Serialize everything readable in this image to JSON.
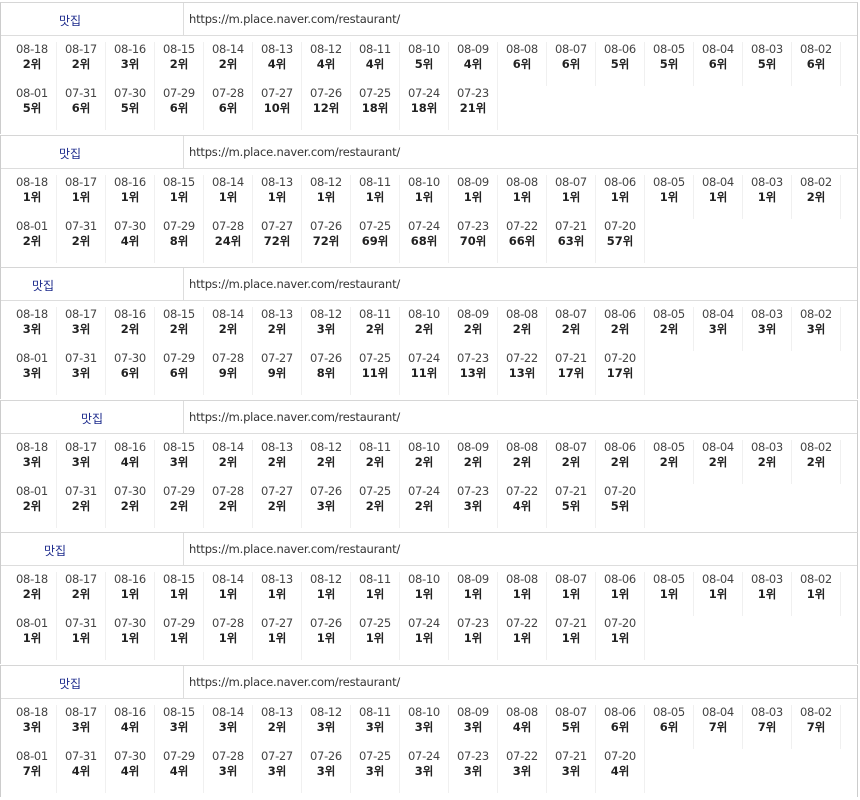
{
  "blocks": [
    {
      "keyword": "맛집",
      "url": "https://m.place.naver.com/restaurant/",
      "dates": [
        "08-18",
        "08-17",
        "08-16",
        "08-15",
        "08-14",
        "08-13",
        "08-12",
        "08-11",
        "08-10",
        "08-09",
        "08-08",
        "08-07",
        "08-06",
        "08-05",
        "08-04",
        "08-03",
        "08-02",
        "08-01",
        "07-31",
        "07-30",
        "07-29",
        "07-28",
        "07-27",
        "07-26",
        "07-25",
        "07-24",
        "07-23"
      ],
      "ranks": [
        "2위",
        "2위",
        "3위",
        "2위",
        "2위",
        "4위",
        "4위",
        "4위",
        "5위",
        "4위",
        "6위",
        "6위",
        "5위",
        "5위",
        "6위",
        "5위",
        "6위",
        "5위",
        "6위",
        "5위",
        "6위",
        "6위",
        "10위",
        "12위",
        "18위",
        "18위",
        "21위"
      ]
    },
    {
      "keyword": "맛집",
      "url": "https://m.place.naver.com/restaurant/",
      "dates": [
        "08-18",
        "08-17",
        "08-16",
        "08-15",
        "08-14",
        "08-13",
        "08-12",
        "08-11",
        "08-10",
        "08-09",
        "08-08",
        "08-07",
        "08-06",
        "08-05",
        "08-04",
        "08-03",
        "08-02",
        "08-01",
        "07-31",
        "07-30",
        "07-29",
        "07-28",
        "07-27",
        "07-26",
        "07-25",
        "07-24",
        "07-23",
        "07-22",
        "07-21",
        "07-20"
      ],
      "ranks": [
        "1위",
        "1위",
        "1위",
        "1위",
        "1위",
        "1위",
        "1위",
        "1위",
        "1위",
        "1위",
        "1위",
        "1위",
        "1위",
        "1위",
        "1위",
        "1위",
        "2위",
        "2위",
        "2위",
        "4위",
        "8위",
        "24위",
        "72위",
        "72위",
        "69위",
        "68위",
        "70위",
        "66위",
        "63위",
        "57위"
      ]
    },
    {
      "keyword": "맛집",
      "url": "https://m.place.naver.com/restaurant/",
      "dates": [
        "08-18",
        "08-17",
        "08-16",
        "08-15",
        "08-14",
        "08-13",
        "08-12",
        "08-11",
        "08-10",
        "08-09",
        "08-08",
        "08-07",
        "08-06",
        "08-05",
        "08-04",
        "08-03",
        "08-02",
        "08-01",
        "07-31",
        "07-30",
        "07-29",
        "07-28",
        "07-27",
        "07-26",
        "07-25",
        "07-24",
        "07-23",
        "07-22",
        "07-21",
        "07-20"
      ],
      "ranks": [
        "3위",
        "3위",
        "2위",
        "2위",
        "2위",
        "2위",
        "3위",
        "2위",
        "2위",
        "2위",
        "2위",
        "2위",
        "2위",
        "2위",
        "3위",
        "3위",
        "3위",
        "3위",
        "3위",
        "6위",
        "6위",
        "9위",
        "9위",
        "8위",
        "11위",
        "11위",
        "13위",
        "13위",
        "17위",
        "17위"
      ]
    },
    {
      "keyword": "맛집",
      "url": "https://m.place.naver.com/restaurant/",
      "dates": [
        "08-18",
        "08-17",
        "08-16",
        "08-15",
        "08-14",
        "08-13",
        "08-12",
        "08-11",
        "08-10",
        "08-09",
        "08-08",
        "08-07",
        "08-06",
        "08-05",
        "08-04",
        "08-03",
        "08-02",
        "08-01",
        "07-31",
        "07-30",
        "07-29",
        "07-28",
        "07-27",
        "07-26",
        "07-25",
        "07-24",
        "07-23",
        "07-22",
        "07-21",
        "07-20"
      ],
      "ranks": [
        "3위",
        "3위",
        "4위",
        "3위",
        "2위",
        "2위",
        "2위",
        "2위",
        "2위",
        "2위",
        "2위",
        "2위",
        "2위",
        "2위",
        "2위",
        "2위",
        "2위",
        "2위",
        "2위",
        "2위",
        "2위",
        "2위",
        "2위",
        "3위",
        "2위",
        "2위",
        "3위",
        "4위",
        "5위",
        "5위"
      ]
    },
    {
      "keyword": "맛집",
      "url": "https://m.place.naver.com/restaurant/",
      "dates": [
        "08-18",
        "08-17",
        "08-16",
        "08-15",
        "08-14",
        "08-13",
        "08-12",
        "08-11",
        "08-10",
        "08-09",
        "08-08",
        "08-07",
        "08-06",
        "08-05",
        "08-04",
        "08-03",
        "08-02",
        "08-01",
        "07-31",
        "07-30",
        "07-29",
        "07-28",
        "07-27",
        "07-26",
        "07-25",
        "07-24",
        "07-23",
        "07-22",
        "07-21",
        "07-20"
      ],
      "ranks": [
        "2위",
        "2위",
        "1위",
        "1위",
        "1위",
        "1위",
        "1위",
        "1위",
        "1위",
        "1위",
        "1위",
        "1위",
        "1위",
        "1위",
        "1위",
        "1위",
        "1위",
        "1위",
        "1위",
        "1위",
        "1위",
        "1위",
        "1위",
        "1위",
        "1위",
        "1위",
        "1위",
        "1위",
        "1위",
        "1위"
      ]
    },
    {
      "keyword": "맛집",
      "url": "https://m.place.naver.com/restaurant/",
      "dates": [
        "08-18",
        "08-17",
        "08-16",
        "08-15",
        "08-14",
        "08-13",
        "08-12",
        "08-11",
        "08-10",
        "08-09",
        "08-08",
        "08-07",
        "08-06",
        "08-05",
        "08-04",
        "08-03",
        "08-02",
        "08-01",
        "07-31",
        "07-30",
        "07-29",
        "07-28",
        "07-27",
        "07-26",
        "07-25",
        "07-24",
        "07-23",
        "07-22",
        "07-21",
        "07-20"
      ],
      "ranks": [
        "3위",
        "3위",
        "4위",
        "3위",
        "3위",
        "2위",
        "3위",
        "3위",
        "3위",
        "3위",
        "4위",
        "5위",
        "6위",
        "6위",
        "7위",
        "7위",
        "7위",
        "7위",
        "4위",
        "4위",
        "4위",
        "3위",
        "3위",
        "3위",
        "3위",
        "3위",
        "3위",
        "3위",
        "3위",
        "4위"
      ]
    }
  ]
}
